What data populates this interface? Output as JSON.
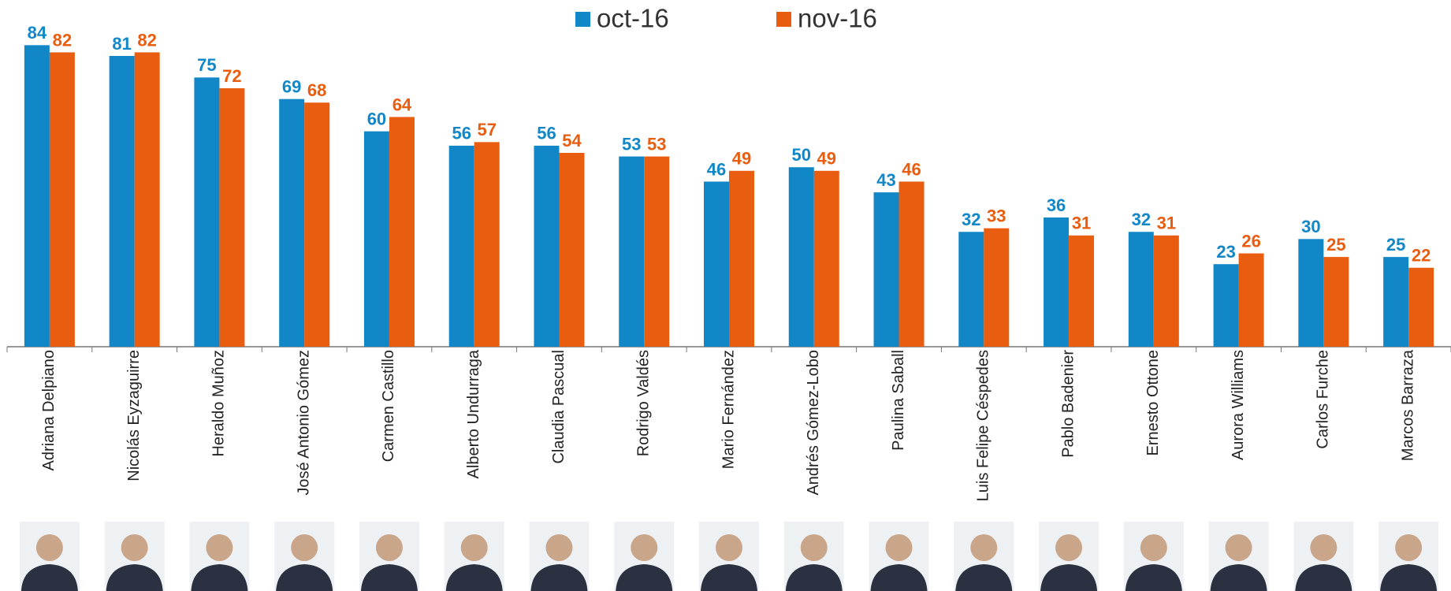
{
  "chart_data": {
    "type": "bar",
    "categories": [
      "Adriana Delpiano",
      "Nicolás Eyzaguirre",
      "Heraldo Muñoz",
      "José Antonio Gómez",
      "Carmen Castillo",
      "Alberto Undurraga",
      "Claudia Pascual",
      "Rodrigo Valdés",
      "Mario Fernández",
      "Andrés Gómez-Lobo",
      "Paulina Saball",
      "Luis Felipe Céspedes",
      "Pablo Badenier",
      "Ernesto Ottone",
      "Aurora Williams",
      "Carlos Furche",
      "Marcos Barraza"
    ],
    "series": [
      {
        "name": "oct-16",
        "color": "#1287c8",
        "values": [
          84,
          81,
          75,
          69,
          60,
          56,
          56,
          53,
          46,
          50,
          43,
          32,
          36,
          32,
          23,
          30,
          25
        ]
      },
      {
        "name": "nov-16",
        "color": "#e85d10",
        "values": [
          82,
          82,
          72,
          68,
          64,
          57,
          54,
          53,
          49,
          49,
          46,
          33,
          31,
          31,
          26,
          25,
          22
        ]
      }
    ],
    "ylim": [
      0,
      90
    ],
    "legend": "top"
  }
}
